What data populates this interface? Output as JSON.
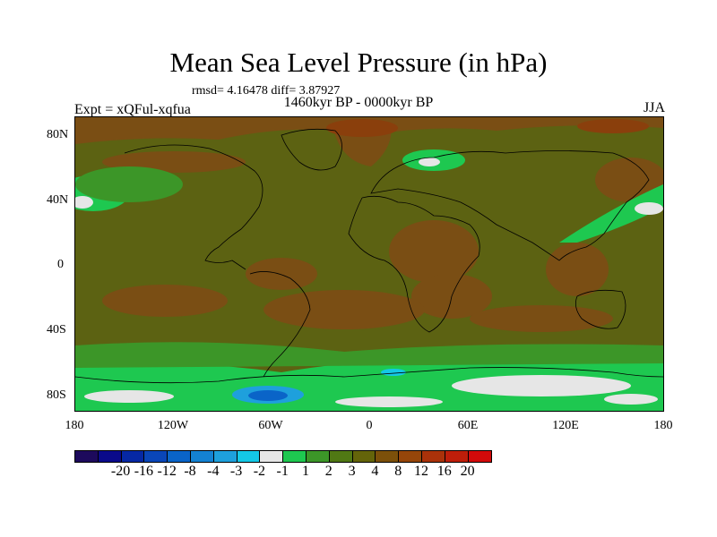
{
  "title": "Mean Sea Level Pressure (in hPa)",
  "stats": "rmsd= 4.16478 diff= 3.87927",
  "period": "1460kyr BP - 0000kyr BP",
  "experiment": "Expt = xQFul-xqfua",
  "season": "JJA",
  "map": {
    "lat_labels": [
      "80N",
      "40N",
      "0",
      "40S",
      "80S"
    ],
    "lon_labels": [
      "180",
      "120W",
      "60W",
      "0",
      "60E",
      "120E",
      "180"
    ],
    "background_color": "#5c6212"
  },
  "colorbar": {
    "colors": [
      "#1d0a5c",
      "#0a0a8a",
      "#0628a4",
      "#0a46b8",
      "#0a64c8",
      "#1482d2",
      "#1ea0dc",
      "#14c8e6",
      "#e6e6e6",
      "#1ec850",
      "#3c9628",
      "#507814",
      "#64640a",
      "#7c500a",
      "#96460a",
      "#aa320a",
      "#be1e0a",
      "#d20a0a"
    ],
    "labels": [
      "-20",
      "-16",
      "-12",
      "-8",
      "-4",
      "-3",
      "-2",
      "-1",
      "1",
      "2",
      "3",
      "4",
      "8",
      "12",
      "16",
      "20"
    ]
  }
}
